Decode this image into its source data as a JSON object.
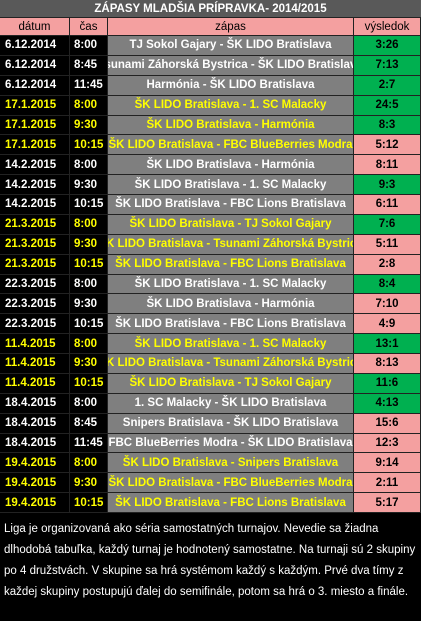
{
  "title": "ZÁPASY MLADŠIA PRÍPRAVKA- 2014/2015",
  "table": {
    "columns": [
      "dátum",
      "čas",
      "zápas",
      "výsledok"
    ],
    "rows": [
      {
        "cells": [
          "6.12.2014",
          "8:00",
          "TJ Sokol Gajary - ŠK LIDO Bratislava",
          "3:26"
        ],
        "text_color": "#ffffff",
        "result_color": "#00b050"
      },
      {
        "cells": [
          "6.12.2014",
          "8:45",
          "Tsunami Záhorská Bystrica - ŠK LIDO Bratislava",
          "7:13"
        ],
        "text_color": "#ffffff",
        "result_color": "#00b050"
      },
      {
        "cells": [
          "6.12.2014",
          "11:45",
          "Harmónia - ŠK LIDO Bratislava",
          "2:7"
        ],
        "text_color": "#ffffff",
        "result_color": "#00b050"
      },
      {
        "cells": [
          "17.1.2015",
          "8:00",
          "ŠK LIDO Bratislava - 1. SC Malacky",
          "24:5"
        ],
        "text_color": "#ffff00",
        "result_color": "#00b050"
      },
      {
        "cells": [
          "17.1.2015",
          "9:30",
          "ŠK LIDO Bratislava - Harmónia",
          "8:3"
        ],
        "text_color": "#ffff00",
        "result_color": "#00b050"
      },
      {
        "cells": [
          "17.1.2015",
          "10:15",
          "ŠK LIDO Bratislava - FBC BlueBerries Modra",
          "5:12"
        ],
        "text_color": "#ffff00",
        "result_color": "#f4a0a0"
      },
      {
        "cells": [
          "14.2.2015",
          "8:00",
          "ŠK LIDO Bratislava - Harmónia",
          "8:11"
        ],
        "text_color": "#ffffff",
        "result_color": "#f4a0a0"
      },
      {
        "cells": [
          "14.2.2015",
          "9:30",
          "ŠK LIDO Bratislava - 1. SC Malacky",
          "9:3"
        ],
        "text_color": "#ffffff",
        "result_color": "#00b050"
      },
      {
        "cells": [
          "14.2.2015",
          "10:15",
          "ŠK LIDO Bratislava - FBC Lions Bratislava",
          "6:11"
        ],
        "text_color": "#ffffff",
        "result_color": "#f4a0a0"
      },
      {
        "cells": [
          "21.3.2015",
          "8:00",
          "ŠK LIDO Bratislava - TJ Sokol Gajary",
          "7:6"
        ],
        "text_color": "#ffff00",
        "result_color": "#00b050"
      },
      {
        "cells": [
          "21.3.2015",
          "9:30",
          "ŠK LIDO Bratislava - Tsunami Záhorská Bystrica",
          "5:11"
        ],
        "text_color": "#ffff00",
        "result_color": "#f4a0a0"
      },
      {
        "cells": [
          "21.3.2015",
          "10:15",
          "ŠK LIDO Bratislava - FBC Lions Bratislava",
          "2:8"
        ],
        "text_color": "#ffff00",
        "result_color": "#f4a0a0"
      },
      {
        "cells": [
          "22.3.2015",
          "8:00",
          "ŠK LIDO Bratislava - 1. SC Malacky",
          "8:4"
        ],
        "text_color": "#ffffff",
        "result_color": "#00b050"
      },
      {
        "cells": [
          "22.3.2015",
          "9:30",
          "ŠK LIDO Bratislava - Harmónia",
          "7:10"
        ],
        "text_color": "#ffffff",
        "result_color": "#f4a0a0"
      },
      {
        "cells": [
          "22.3.2015",
          "10:15",
          "ŠK LIDO Bratislava - FBC Lions Bratislava",
          "4:9"
        ],
        "text_color": "#ffffff",
        "result_color": "#f4a0a0"
      },
      {
        "cells": [
          "11.4.2015",
          "8:00",
          "ŠK LIDO Bratislava - 1. SC Malacky",
          "13:1"
        ],
        "text_color": "#ffff00",
        "result_color": "#00b050"
      },
      {
        "cells": [
          "11.4.2015",
          "9:30",
          "ŠK LIDO Bratislava - Tsunami Záhorská Bystrica",
          "8:13"
        ],
        "text_color": "#ffff00",
        "result_color": "#f4a0a0"
      },
      {
        "cells": [
          "11.4.2015",
          "10:15",
          "ŠK LIDO Bratislava - TJ Sokol Gajary",
          "11:6"
        ],
        "text_color": "#ffff00",
        "result_color": "#00b050"
      },
      {
        "cells": [
          "18.4.2015",
          "8:00",
          "1. SC Malacky - ŠK LIDO Bratislava",
          "4:13"
        ],
        "text_color": "#ffffff",
        "result_color": "#00b050"
      },
      {
        "cells": [
          "18.4.2015",
          "8:45",
          "Snipers Bratislava - ŠK LIDO Bratislava",
          "15:6"
        ],
        "text_color": "#ffffff",
        "result_color": "#f4a0a0"
      },
      {
        "cells": [
          "18.4.2015",
          "11:45",
          "FBC BlueBerries Modra - ŠK LIDO Bratislava",
          "12:3"
        ],
        "text_color": "#ffffff",
        "result_color": "#f4a0a0"
      },
      {
        "cells": [
          "19.4.2015",
          "8:00",
          "ŠK LIDO Bratislava - Snipers Bratislava",
          "9:14"
        ],
        "text_color": "#ffff00",
        "result_color": "#f4a0a0"
      },
      {
        "cells": [
          "19.4.2015",
          "9:30",
          "ŠK LIDO Bratislava - FBC BlueBerries Modra",
          "2:11"
        ],
        "text_color": "#ffff00",
        "result_color": "#f4a0a0"
      },
      {
        "cells": [
          "19.4.2015",
          "10:15",
          "ŠK LIDO Bratislava - FBC Lions Bratislava",
          "5:17"
        ],
        "text_color": "#ffff00",
        "result_color": "#f4a0a0"
      }
    ]
  },
  "note": "Liga je organizovaná ako séria samostatných turnajov. Nevedie sa žiadna dlhodobá tabuľka, každý turnaj je hodnotený samostatne. Na turnaji sú 2 skupiny po 4 družstvách. V skupine sa hrá systémom každý s každým. Prvé dva tímy z každej skupiny postupujú ďalej do semifinále, potom sa hrá o 3. miesto a finále."
}
